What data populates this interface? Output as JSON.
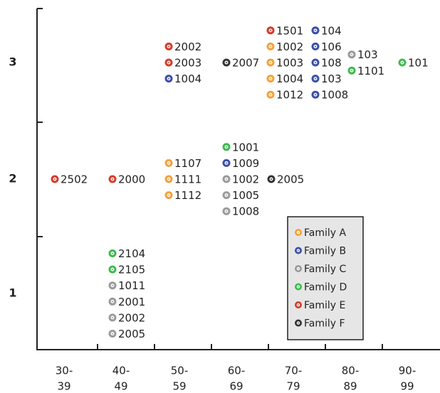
{
  "chart_data": {
    "type": "category-grid",
    "columns": [
      [
        "30-",
        "39"
      ],
      [
        "40-",
        "49"
      ],
      [
        "50-",
        "59"
      ],
      [
        "60-",
        "69"
      ],
      [
        "70-",
        "79"
      ],
      [
        "80-",
        "89"
      ],
      [
        "90-",
        "99"
      ]
    ],
    "legend": [
      {
        "name": "Family A",
        "color": "#f5a03a"
      },
      {
        "name": "Family B",
        "color": "#3b4fa8"
      },
      {
        "name": "Family C",
        "color": "#9a9a9a"
      },
      {
        "name": "Family D",
        "color": "#3dba4e"
      },
      {
        "name": "Family E",
        "color": "#d63a2a"
      },
      {
        "name": "Family F",
        "color": "#333333"
      }
    ],
    "rows": [
      {
        "label": "3",
        "cells": [
          [],
          [],
          [
            [
              {
                "id": "2002",
                "family": "Family E"
              },
              {
                "id": "2003",
                "family": "Family E"
              },
              {
                "id": "1004",
                "family": "Family B"
              }
            ]
          ],
          [
            [
              {
                "id": "2007",
                "family": "Family F"
              }
            ]
          ],
          [
            [
              {
                "id": "1501",
                "family": "Family E"
              },
              {
                "id": "1002",
                "family": "Family A"
              },
              {
                "id": "1003",
                "family": "Family A"
              },
              {
                "id": "1004",
                "family": "Family A"
              },
              {
                "id": "1012",
                "family": "Family A"
              }
            ],
            [
              {
                "id": "104",
                "family": "Family B"
              },
              {
                "id": "106",
                "family": "Family B"
              },
              {
                "id": "108",
                "family": "Family B"
              },
              {
                "id": "103",
                "family": "Family B"
              },
              {
                "id": "1008",
                "family": "Family B"
              }
            ]
          ],
          [
            [
              {
                "id": "103",
                "family": "Family C"
              },
              {
                "id": "1101",
                "family": "Family D"
              }
            ]
          ],
          [
            [
              {
                "id": "101",
                "family": "Family D"
              }
            ]
          ]
        ]
      },
      {
        "label": "2",
        "cells": [
          [
            [
              {
                "id": "2502",
                "family": "Family E"
              }
            ]
          ],
          [
            [
              {
                "id": "2000",
                "family": "Family E"
              }
            ]
          ],
          [
            [
              {
                "id": "1107",
                "family": "Family A"
              },
              {
                "id": "1111",
                "family": "Family A"
              },
              {
                "id": "1112",
                "family": "Family A"
              }
            ]
          ],
          [
            [
              {
                "id": "1001",
                "family": "Family D"
              },
              {
                "id": "1009",
                "family": "Family B"
              },
              {
                "id": "1002",
                "family": "Family C"
              },
              {
                "id": "1005",
                "family": "Family C"
              },
              {
                "id": "1008",
                "family": "Family C"
              }
            ],
            [
              {
                "id": "2005",
                "family": "Family F"
              }
            ]
          ],
          [],
          [],
          []
        ]
      },
      {
        "label": "1",
        "cells": [
          [],
          [
            [
              {
                "id": "2104",
                "family": "Family D"
              },
              {
                "id": "2105",
                "family": "Family D"
              },
              {
                "id": "1011",
                "family": "Family C"
              },
              {
                "id": "2001",
                "family": "Family C"
              },
              {
                "id": "2002",
                "family": "Family C"
              },
              {
                "id": "2005",
                "family": "Family C"
              }
            ]
          ],
          [],
          [],
          [],
          [],
          []
        ]
      }
    ]
  }
}
